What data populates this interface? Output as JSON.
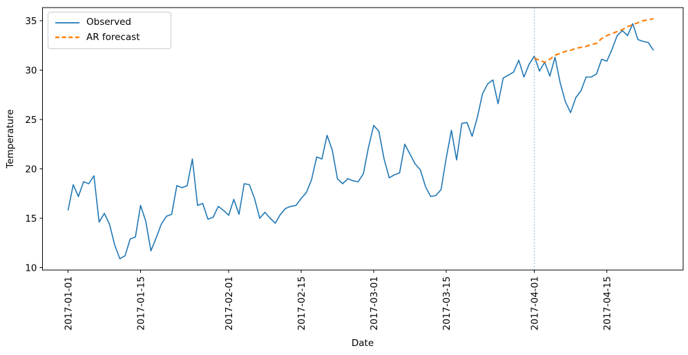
{
  "figure": {
    "legend": [
      {
        "label": "Observed"
      },
      {
        "label": "AR forecast"
      }
    ]
  },
  "colors": {
    "observed": "#1f77b4",
    "forecast": "#ff7f0e",
    "vline": "#8fbbd9",
    "spine": "#000000",
    "text": "#000000",
    "legend_border": "#cccccc"
  },
  "chart_data": {
    "type": "line",
    "title": "",
    "xlabel": "Date",
    "ylabel": "Temperature",
    "grid": false,
    "legend_position": "upper left",
    "ylim": [
      9.7,
      36.4
    ],
    "y_ticks": [
      10,
      15,
      20,
      25,
      30,
      35
    ],
    "x_ticks": [
      {
        "day": 0,
        "label": "2017-01-01"
      },
      {
        "day": 14,
        "label": "2017-01-15"
      },
      {
        "day": 31,
        "label": "2017-02-01"
      },
      {
        "day": 45,
        "label": "2017-02-15"
      },
      {
        "day": 59,
        "label": "2017-03-01"
      },
      {
        "day": 73,
        "label": "2017-03-15"
      },
      {
        "day": 90,
        "label": "2017-04-01"
      },
      {
        "day": 104,
        "label": "2017-04-15"
      }
    ],
    "x_start_date": "2017-01-01",
    "x_end_date": "2017-04-24",
    "vline_date": "2017-04-01",
    "vline_day": 90,
    "series": [
      {
        "name": "Observed",
        "color": "#1f77b4",
        "style": "solid",
        "start_day": 0,
        "start_date": "2017-01-01",
        "values": [
          15.8,
          18.4,
          17.2,
          18.7,
          18.5,
          19.3,
          14.6,
          15.5,
          14.4,
          12.3,
          10.9,
          11.2,
          12.9,
          13.1,
          16.3,
          14.7,
          11.7,
          13.0,
          14.4,
          15.2,
          15.4,
          18.3,
          18.1,
          18.3,
          21.0,
          16.3,
          16.5,
          14.9,
          15.1,
          16.2,
          15.8,
          15.3,
          16.9,
          15.4,
          18.5,
          18.4,
          17.0,
          15.0,
          15.6,
          15.0,
          14.5,
          15.4,
          16.0,
          16.2,
          16.3,
          17.0,
          17.6,
          18.9,
          21.2,
          21.0,
          23.4,
          21.9,
          19.0,
          18.5,
          19.0,
          18.8,
          18.7,
          19.5,
          22.2,
          24.4,
          23.8,
          21.0,
          19.1,
          19.4,
          19.6,
          22.5,
          21.5,
          20.5,
          19.9,
          18.2,
          17.2,
          17.3,
          17.9,
          21.1,
          23.9,
          20.9,
          24.6,
          24.7,
          23.3,
          25.2,
          27.6,
          28.6,
          29.0,
          26.6,
          29.2,
          29.5,
          29.8,
          31.0,
          29.3,
          30.6,
          31.4,
          29.9,
          30.8,
          29.4,
          31.3,
          28.7,
          26.8,
          25.7,
          27.2,
          27.9,
          29.3,
          29.3,
          29.6,
          31.1,
          30.9,
          32.1,
          33.5,
          34.0,
          33.5,
          34.7,
          33.1,
          32.9,
          32.8,
          32.0
        ]
      },
      {
        "name": "AR forecast",
        "color": "#ff7f0e",
        "style": "dashed",
        "start_day": 90,
        "start_date": "2017-04-01",
        "values": [
          31.2,
          31.0,
          30.8,
          31.1,
          31.5,
          31.7,
          31.9,
          32.0,
          32.2,
          32.3,
          32.4,
          32.6,
          32.7,
          33.2,
          33.5,
          33.7,
          33.9,
          34.1,
          34.4,
          34.6,
          34.8,
          35.0,
          35.1,
          35.2
        ]
      }
    ]
  }
}
